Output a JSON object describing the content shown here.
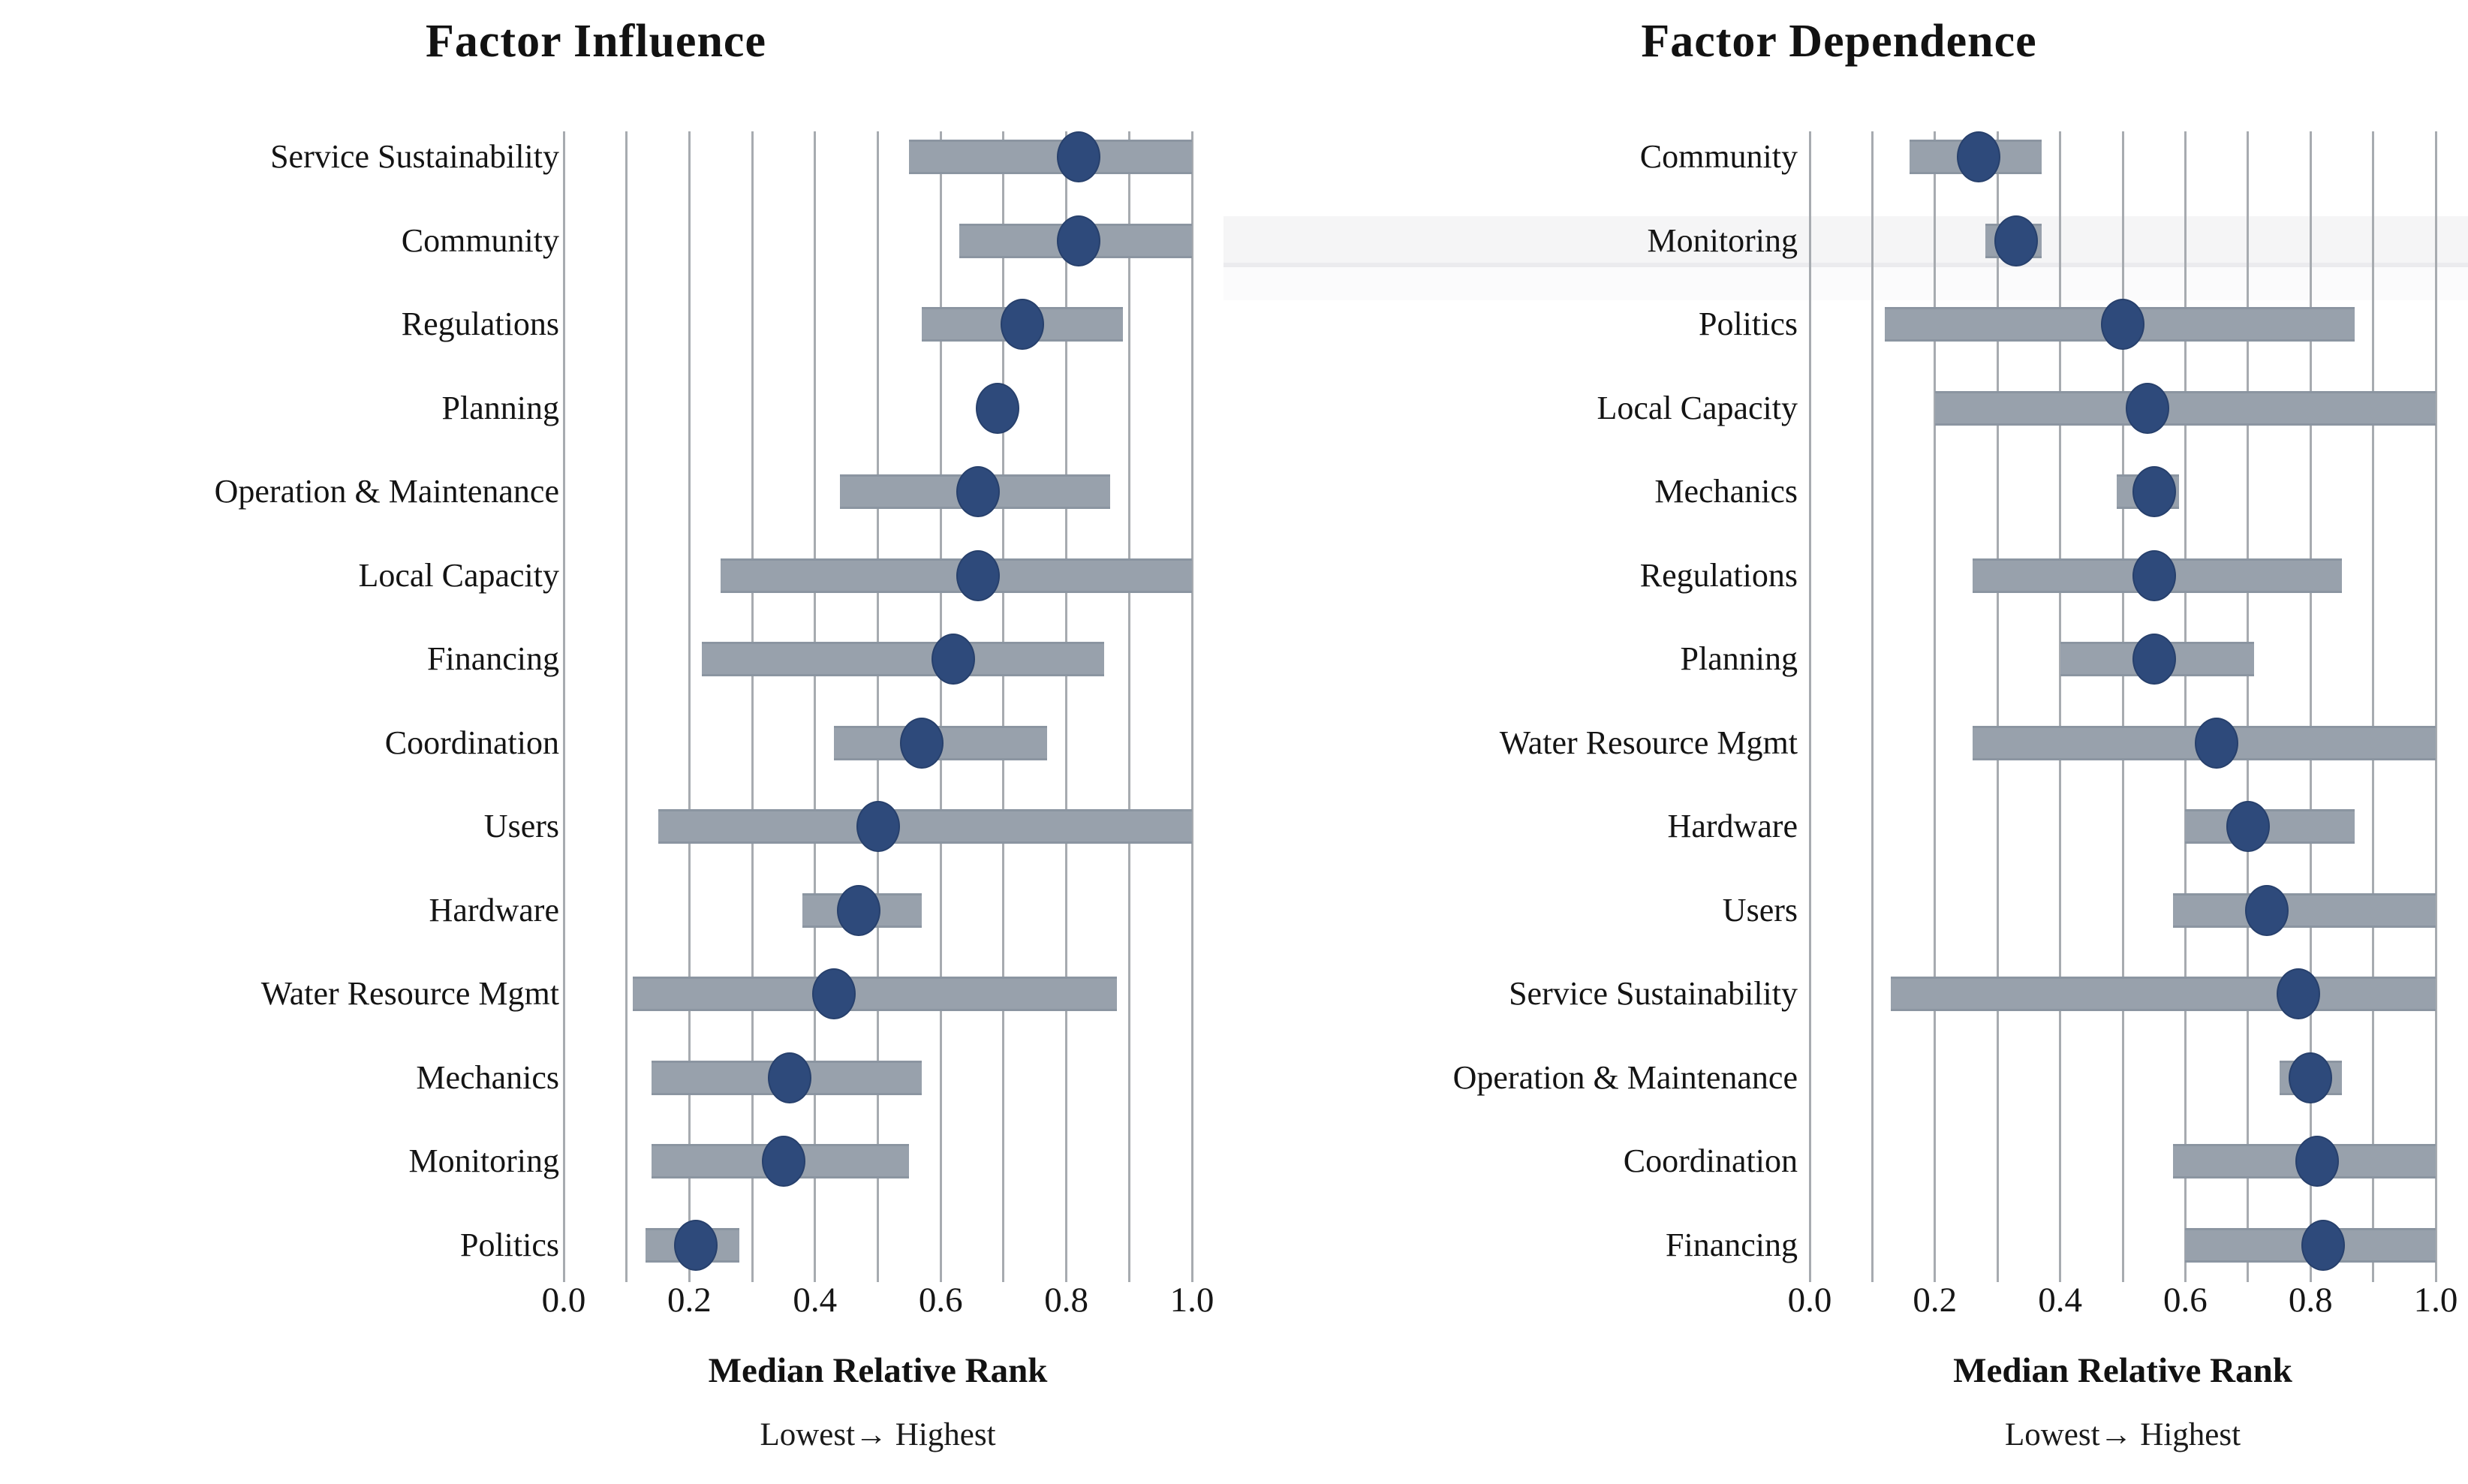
{
  "figure": {
    "background": "#ffffff",
    "colors": {
      "dot": "#2e4a7b",
      "bar": "#98a1ac",
      "bar_border": "#8b95a1",
      "gridline": "#a7abb0",
      "text": "#141414",
      "highlight_band": "#f5f5f6"
    }
  },
  "chart_data": [
    {
      "type": "scatter",
      "subtype": "dot-with-range-bar",
      "title": "Factor Influence",
      "xlabel": "Median Relative Rank",
      "xlabel_sub": "Lowest→ Highest",
      "xlim": [
        0.0,
        1.0
      ],
      "tick_labels": [
        "0.0",
        "0.2",
        "0.4",
        "0.6",
        "0.8",
        "1.0"
      ],
      "grid": "vertical, every 0.1",
      "legend": "none",
      "rows": [
        {
          "label": "Service Sustainability",
          "bar": [
            0.55,
            1.0
          ],
          "dot": 0.82
        },
        {
          "label": "Community",
          "bar": [
            0.63,
            1.0
          ],
          "dot": 0.82
        },
        {
          "label": "Regulations",
          "bar": [
            0.57,
            0.89
          ],
          "dot": 0.73
        },
        {
          "label": "Planning",
          "bar": null,
          "dot": 0.69
        },
        {
          "label": "Operation & Maintenance",
          "bar": [
            0.44,
            0.87
          ],
          "dot": 0.66
        },
        {
          "label": "Local Capacity",
          "bar": [
            0.25,
            1.0
          ],
          "dot": 0.66
        },
        {
          "label": "Financing",
          "bar": [
            0.22,
            0.86
          ],
          "dot": 0.62
        },
        {
          "label": "Coordination",
          "bar": [
            0.43,
            0.77
          ],
          "dot": 0.57
        },
        {
          "label": "Users",
          "bar": [
            0.15,
            1.0
          ],
          "dot": 0.5
        },
        {
          "label": "Hardware",
          "bar": [
            0.38,
            0.57
          ],
          "dot": 0.47
        },
        {
          "label": "Water Resource Mgmt",
          "bar": [
            0.11,
            0.88
          ],
          "dot": 0.43
        },
        {
          "label": "Mechanics",
          "bar": [
            0.14,
            0.57
          ],
          "dot": 0.36
        },
        {
          "label": "Monitoring",
          "bar": [
            0.14,
            0.55
          ],
          "dot": 0.35
        },
        {
          "label": "Politics",
          "bar": [
            0.13,
            0.28
          ],
          "dot": 0.21
        }
      ]
    },
    {
      "type": "scatter",
      "subtype": "dot-with-range-bar",
      "title": "Factor Dependence",
      "xlabel": "Median Relative Rank",
      "xlabel_sub": "Lowest→ Highest",
      "xlim": [
        0.0,
        1.0
      ],
      "tick_labels": [
        "0.0",
        "0.2",
        "0.4",
        "0.6",
        "0.8",
        "1.0"
      ],
      "grid": "vertical, every 0.1",
      "legend": "none",
      "row_highlight": "Monitoring",
      "rows": [
        {
          "label": "Community",
          "bar": [
            0.16,
            0.37
          ],
          "dot": 0.27
        },
        {
          "label": "Monitoring",
          "bar": [
            0.28,
            0.37
          ],
          "dot": 0.33
        },
        {
          "label": "Politics",
          "bar": [
            0.12,
            0.87
          ],
          "dot": 0.5
        },
        {
          "label": "Local Capacity",
          "bar": [
            0.2,
            1.0
          ],
          "dot": 0.54
        },
        {
          "label": "Mechanics",
          "bar": [
            0.49,
            0.59
          ],
          "dot": 0.55
        },
        {
          "label": "Regulations",
          "bar": [
            0.26,
            0.85
          ],
          "dot": 0.55
        },
        {
          "label": "Planning",
          "bar": [
            0.4,
            0.71
          ],
          "dot": 0.55
        },
        {
          "label": "Water Resource Mgmt",
          "bar": [
            0.26,
            1.0
          ],
          "dot": 0.65
        },
        {
          "label": "Hardware",
          "bar": [
            0.6,
            0.87
          ],
          "dot": 0.7
        },
        {
          "label": "Users",
          "bar": [
            0.58,
            1.0
          ],
          "dot": 0.73
        },
        {
          "label": "Service Sustainability",
          "bar": [
            0.13,
            1.0
          ],
          "dot": 0.78
        },
        {
          "label": "Operation & Maintenance",
          "bar": [
            0.75,
            0.85
          ],
          "dot": 0.8
        },
        {
          "label": "Coordination",
          "bar": [
            0.58,
            1.0
          ],
          "dot": 0.81
        },
        {
          "label": "Financing",
          "bar": [
            0.6,
            1.0
          ],
          "dot": 0.82
        }
      ]
    }
  ]
}
